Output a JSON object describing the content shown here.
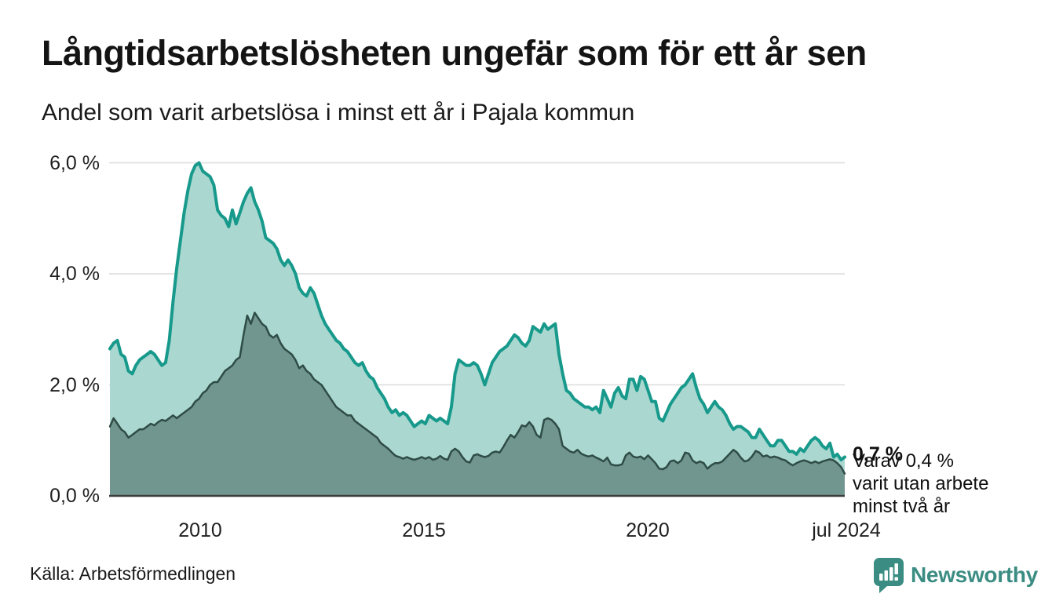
{
  "header": {
    "title": "Långtidsarbetslösheten ungefär som för ett år sen",
    "subtitle": "Andel som varit arbetslösa i minst ett år i Pajala kommun"
  },
  "chart_data": {
    "type": "area",
    "title": "Långtidsarbetslösheten ungefär som för ett år sen",
    "subtitle": "Andel som varit arbetslösa i minst ett år i Pajala kommun",
    "unit": "%",
    "frequency": "monthly",
    "x_start": "2008-01",
    "x_end": "2024-07",
    "ylim": [
      0,
      6.3
    ],
    "grid": "horizontal",
    "yticks": [
      {
        "label": "6,0 %",
        "value": 6
      },
      {
        "label": "4,0 %",
        "value": 4
      },
      {
        "label": "2,0 %",
        "value": 2
      },
      {
        "label": "0,0 %",
        "value": 0
      }
    ],
    "xticks": [
      {
        "label": "2010"
      },
      {
        "label": "2015"
      },
      {
        "label": "2020"
      },
      {
        "label": "jul 2024"
      }
    ],
    "series": [
      {
        "name": "Arbetslösa minst ett år",
        "line_color": "#17998b",
        "fill_color": "#aad8d0",
        "last_value_label": "0,7 %",
        "values": [
          2.65,
          2.75,
          2.8,
          2.55,
          2.5,
          2.25,
          2.2,
          2.35,
          2.45,
          2.5,
          2.55,
          2.6,
          2.55,
          2.45,
          2.35,
          2.4,
          2.8,
          3.5,
          4.1,
          4.6,
          5.1,
          5.5,
          5.8,
          5.95,
          6.0,
          5.85,
          5.8,
          5.75,
          5.6,
          5.15,
          5.05,
          5.0,
          4.85,
          5.15,
          4.9,
          5.1,
          5.3,
          5.45,
          5.55,
          5.3,
          5.15,
          4.95,
          4.65,
          4.6,
          4.55,
          4.45,
          4.25,
          4.15,
          4.25,
          4.15,
          4.0,
          3.75,
          3.65,
          3.6,
          3.75,
          3.65,
          3.45,
          3.25,
          3.1,
          3.0,
          2.9,
          2.8,
          2.75,
          2.65,
          2.6,
          2.5,
          2.4,
          2.35,
          2.4,
          2.25,
          2.15,
          2.1,
          1.95,
          1.85,
          1.75,
          1.6,
          1.5,
          1.55,
          1.45,
          1.5,
          1.45,
          1.35,
          1.25,
          1.3,
          1.35,
          1.3,
          1.45,
          1.4,
          1.35,
          1.4,
          1.35,
          1.3,
          1.6,
          2.2,
          2.45,
          2.4,
          2.35,
          2.35,
          2.4,
          2.35,
          2.2,
          2.0,
          2.2,
          2.4,
          2.5,
          2.6,
          2.65,
          2.7,
          2.8,
          2.9,
          2.85,
          2.75,
          2.7,
          2.8,
          3.05,
          3.0,
          2.95,
          3.1,
          3.0,
          3.05,
          3.1,
          2.55,
          2.2,
          1.9,
          1.85,
          1.75,
          1.7,
          1.65,
          1.6,
          1.6,
          1.55,
          1.6,
          1.5,
          1.9,
          1.75,
          1.6,
          1.85,
          1.95,
          1.8,
          1.75,
          2.1,
          2.1,
          1.9,
          2.15,
          2.1,
          1.9,
          1.7,
          1.7,
          1.4,
          1.35,
          1.5,
          1.65,
          1.75,
          1.85,
          1.95,
          2.0,
          2.1,
          2.2,
          1.95,
          1.75,
          1.65,
          1.5,
          1.6,
          1.7,
          1.6,
          1.55,
          1.45,
          1.3,
          1.2,
          1.25,
          1.25,
          1.2,
          1.15,
          1.05,
          1.05,
          1.2,
          1.1,
          1.0,
          0.9,
          0.9,
          1.0,
          1.0,
          0.9,
          0.8,
          0.8,
          0.75,
          0.85,
          0.8,
          0.9,
          1.0,
          1.05,
          1.0,
          0.9,
          0.85,
          0.95,
          0.7,
          0.75,
          0.65,
          0.7
        ]
      },
      {
        "name": "Varav utan arbete minst två år",
        "line_color": "#2f4c46",
        "fill_color": "#70968f",
        "last_value_label": "0,4 %",
        "values": [
          1.25,
          1.4,
          1.3,
          1.2,
          1.15,
          1.05,
          1.1,
          1.15,
          1.2,
          1.2,
          1.25,
          1.3,
          1.27,
          1.33,
          1.37,
          1.35,
          1.4,
          1.45,
          1.4,
          1.45,
          1.5,
          1.55,
          1.6,
          1.7,
          1.75,
          1.85,
          1.9,
          2.0,
          2.05,
          2.05,
          2.15,
          2.25,
          2.3,
          2.35,
          2.45,
          2.5,
          2.9,
          3.25,
          3.1,
          3.3,
          3.2,
          3.1,
          3.05,
          2.9,
          2.85,
          2.9,
          2.75,
          2.65,
          2.6,
          2.55,
          2.45,
          2.3,
          2.35,
          2.25,
          2.2,
          2.1,
          2.05,
          2.0,
          1.9,
          1.8,
          1.7,
          1.6,
          1.55,
          1.5,
          1.45,
          1.45,
          1.35,
          1.3,
          1.25,
          1.2,
          1.15,
          1.1,
          1.05,
          0.95,
          0.9,
          0.85,
          0.78,
          0.72,
          0.7,
          0.67,
          0.7,
          0.67,
          0.65,
          0.67,
          0.7,
          0.67,
          0.7,
          0.65,
          0.67,
          0.72,
          0.67,
          0.65,
          0.8,
          0.85,
          0.8,
          0.7,
          0.62,
          0.6,
          0.73,
          0.75,
          0.72,
          0.7,
          0.72,
          0.78,
          0.8,
          0.78,
          0.88,
          1.0,
          1.1,
          1.05,
          1.15,
          1.27,
          1.25,
          1.33,
          1.25,
          1.1,
          1.05,
          1.37,
          1.4,
          1.37,
          1.3,
          1.2,
          0.9,
          0.85,
          0.8,
          0.78,
          0.83,
          0.76,
          0.73,
          0.71,
          0.73,
          0.69,
          0.66,
          0.62,
          0.69,
          0.57,
          0.55,
          0.55,
          0.57,
          0.73,
          0.78,
          0.71,
          0.69,
          0.71,
          0.66,
          0.73,
          0.66,
          0.59,
          0.49,
          0.48,
          0.52,
          0.62,
          0.64,
          0.59,
          0.64,
          0.78,
          0.76,
          0.64,
          0.59,
          0.62,
          0.59,
          0.49,
          0.55,
          0.59,
          0.59,
          0.62,
          0.69,
          0.76,
          0.83,
          0.78,
          0.69,
          0.62,
          0.64,
          0.71,
          0.81,
          0.78,
          0.71,
          0.73,
          0.69,
          0.71,
          0.69,
          0.66,
          0.64,
          0.59,
          0.55,
          0.59,
          0.62,
          0.64,
          0.62,
          0.59,
          0.62,
          0.59,
          0.62,
          0.64,
          0.66,
          0.64,
          0.59,
          0.52,
          0.4
        ]
      }
    ],
    "annotations": {
      "value_label": "0,7 %",
      "note_line1": "Varav 0,4 %",
      "note_line2": "varit utan arbete",
      "note_line3": "minst två år"
    },
    "colors": {
      "grid": "#dcdcdc",
      "baseline": "#3d3d3d"
    }
  },
  "footer": {
    "source": "Källa: Arbetsförmedlingen",
    "brand": "Newsworthy",
    "brand_color": "#3b8c82"
  }
}
